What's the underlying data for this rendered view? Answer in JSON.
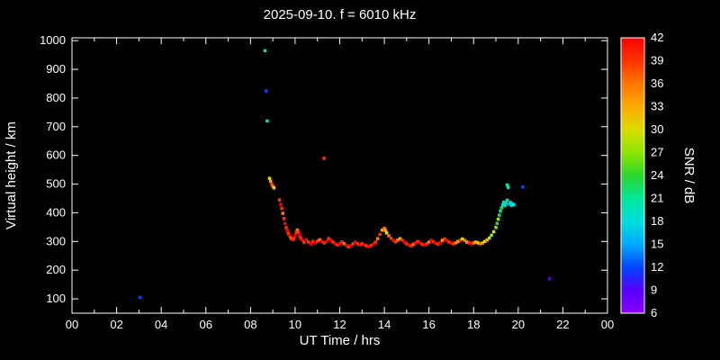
{
  "chart_data": {
    "type": "scatter",
    "title": "2025-09-10. f = 6010 kHz",
    "xlabel": "UT Time / hrs",
    "ylabel": "Virtual height / km",
    "colorbar_label": "SNR / dB",
    "background": "#000000",
    "foreground": "#ffffff",
    "x_range": [
      0,
      24
    ],
    "x_tick_step_hrs": 2,
    "x_ticks": [
      "00",
      "02",
      "04",
      "06",
      "08",
      "10",
      "12",
      "14",
      "16",
      "18",
      "20",
      "22",
      "00"
    ],
    "y_range": [
      50,
      1010
    ],
    "y_ticks": [
      100,
      200,
      300,
      400,
      500,
      600,
      700,
      800,
      900,
      1000
    ],
    "grid": false,
    "legend": "none",
    "colorbar_range": [
      6,
      42
    ],
    "colorbar_ticks": [
      6,
      9,
      12,
      15,
      18,
      21,
      24,
      27,
      30,
      33,
      36,
      39,
      42
    ],
    "colormap": [
      {
        "v": 6,
        "c": "#8800ff"
      },
      {
        "v": 9,
        "c": "#5500ff"
      },
      {
        "v": 12,
        "c": "#0044ff"
      },
      {
        "v": 15,
        "c": "#00aaff"
      },
      {
        "v": 18,
        "c": "#00dddd"
      },
      {
        "v": 21,
        "c": "#00e69a"
      },
      {
        "v": 24,
        "c": "#2cd62c"
      },
      {
        "v": 27,
        "c": "#8ce600"
      },
      {
        "v": 30,
        "c": "#dcdc00"
      },
      {
        "v": 33,
        "c": "#ffaa00"
      },
      {
        "v": 36,
        "c": "#ff7700"
      },
      {
        "v": 39,
        "c": "#ff3300"
      },
      {
        "v": 42,
        "c": "#ff0000"
      }
    ],
    "points_format": [
      "ut_time_hrs",
      "virtual_height_km",
      "snr_db"
    ],
    "points": [
      [
        3.05,
        105,
        12
      ],
      [
        8.65,
        965,
        21
      ],
      [
        8.7,
        825,
        12
      ],
      [
        8.75,
        720,
        19
      ],
      [
        8.85,
        520,
        30
      ],
      [
        8.9,
        510,
        33
      ],
      [
        8.95,
        500,
        39
      ],
      [
        9.0,
        493,
        36
      ],
      [
        9.05,
        487,
        30
      ],
      [
        9.3,
        445,
        39
      ],
      [
        9.35,
        430,
        42
      ],
      [
        9.4,
        415,
        39
      ],
      [
        9.45,
        398,
        36
      ],
      [
        9.5,
        380,
        39
      ],
      [
        9.55,
        362,
        42
      ],
      [
        9.6,
        348,
        39
      ],
      [
        9.65,
        337,
        42
      ],
      [
        9.7,
        327,
        39
      ],
      [
        9.75,
        320,
        42
      ],
      [
        9.8,
        314,
        39
      ],
      [
        9.85,
        309,
        36
      ],
      [
        9.9,
        306,
        42
      ],
      [
        9.95,
        310,
        39
      ],
      [
        10.0,
        320,
        42
      ],
      [
        10.05,
        331,
        39
      ],
      [
        10.1,
        340,
        36
      ],
      [
        10.15,
        332,
        39
      ],
      [
        10.2,
        320,
        42
      ],
      [
        10.25,
        312,
        39
      ],
      [
        10.3,
        306,
        42
      ],
      [
        10.4,
        298,
        39
      ],
      [
        10.5,
        306,
        42
      ],
      [
        10.6,
        298,
        39
      ],
      [
        10.7,
        292,
        42
      ],
      [
        10.8,
        300,
        39
      ],
      [
        10.9,
        295,
        42
      ],
      [
        11.0,
        301,
        39
      ],
      [
        11.1,
        306,
        36
      ],
      [
        11.2,
        300,
        42
      ],
      [
        11.3,
        295,
        39
      ],
      [
        11.3,
        590,
        39
      ],
      [
        11.4,
        300,
        42
      ],
      [
        11.5,
        310,
        39
      ],
      [
        11.6,
        305,
        42
      ],
      [
        11.7,
        298,
        39
      ],
      [
        11.8,
        292,
        42
      ],
      [
        11.9,
        288,
        39
      ],
      [
        12.0,
        292,
        42
      ],
      [
        12.1,
        298,
        39
      ],
      [
        12.2,
        292,
        36
      ],
      [
        12.3,
        286,
        42
      ],
      [
        12.4,
        281,
        39
      ],
      [
        12.5,
        286,
        42
      ],
      [
        12.6,
        292,
        39
      ],
      [
        12.7,
        298,
        42
      ],
      [
        12.8,
        292,
        39
      ],
      [
        12.9,
        288,
        42
      ],
      [
        13.0,
        292,
        39
      ],
      [
        13.1,
        288,
        42
      ],
      [
        13.2,
        285,
        39
      ],
      [
        13.3,
        282,
        42
      ],
      [
        13.4,
        286,
        39
      ],
      [
        13.5,
        291,
        42
      ],
      [
        13.6,
        298,
        39
      ],
      [
        13.7,
        310,
        36
      ],
      [
        13.8,
        325,
        39
      ],
      [
        13.9,
        340,
        33
      ],
      [
        14.0,
        346,
        36
      ],
      [
        14.05,
        338,
        33
      ],
      [
        14.1,
        330,
        30
      ],
      [
        14.2,
        320,
        36
      ],
      [
        14.3,
        311,
        39
      ],
      [
        14.4,
        304,
        42
      ],
      [
        14.5,
        299,
        39
      ],
      [
        14.6,
        305,
        36
      ],
      [
        14.7,
        310,
        33
      ],
      [
        14.8,
        305,
        39
      ],
      [
        14.9,
        298,
        42
      ],
      [
        15.0,
        292,
        39
      ],
      [
        15.1,
        288,
        42
      ],
      [
        15.2,
        285,
        39
      ],
      [
        15.3,
        290,
        36
      ],
      [
        15.4,
        295,
        42
      ],
      [
        15.5,
        300,
        39
      ],
      [
        15.6,
        295,
        42
      ],
      [
        15.7,
        290,
        39
      ],
      [
        15.8,
        288,
        42
      ],
      [
        15.9,
        292,
        39
      ],
      [
        16.0,
        298,
        36
      ],
      [
        16.1,
        304,
        42
      ],
      [
        16.2,
        299,
        39
      ],
      [
        16.3,
        294,
        42
      ],
      [
        16.4,
        291,
        39
      ],
      [
        16.5,
        297,
        42
      ],
      [
        16.6,
        304,
        33
      ],
      [
        16.7,
        309,
        39
      ],
      [
        16.8,
        304,
        42
      ],
      [
        16.9,
        298,
        39
      ],
      [
        17.0,
        295,
        42
      ],
      [
        17.1,
        292,
        39
      ],
      [
        17.2,
        295,
        36
      ],
      [
        17.3,
        300,
        33
      ],
      [
        17.4,
        305,
        39
      ],
      [
        17.5,
        309,
        30
      ],
      [
        17.6,
        304,
        36
      ],
      [
        17.7,
        298,
        33
      ],
      [
        17.8,
        295,
        39
      ],
      [
        17.9,
        292,
        42
      ],
      [
        18.0,
        295,
        36
      ],
      [
        18.1,
        298,
        33
      ],
      [
        18.2,
        295,
        30
      ],
      [
        18.3,
        292,
        36
      ],
      [
        18.4,
        295,
        33
      ],
      [
        18.5,
        300,
        30
      ],
      [
        18.6,
        305,
        33
      ],
      [
        18.7,
        312,
        30
      ],
      [
        18.8,
        322,
        27
      ],
      [
        18.9,
        334,
        30
      ],
      [
        19.0,
        349,
        27
      ],
      [
        19.05,
        363,
        24
      ],
      [
        19.1,
        378,
        27
      ],
      [
        19.15,
        392,
        24
      ],
      [
        19.2,
        406,
        21
      ],
      [
        19.25,
        417,
        24
      ],
      [
        19.3,
        427,
        18
      ],
      [
        19.35,
        437,
        21
      ],
      [
        19.4,
        425,
        18
      ],
      [
        19.45,
        433,
        21
      ],
      [
        19.5,
        444,
        18
      ],
      [
        19.5,
        497,
        21
      ],
      [
        19.55,
        488,
        18
      ],
      [
        19.6,
        430,
        15
      ],
      [
        19.65,
        436,
        18
      ],
      [
        19.7,
        426,
        21
      ],
      [
        19.75,
        431,
        18
      ],
      [
        19.8,
        428,
        18
      ],
      [
        20.2,
        490,
        12
      ],
      [
        21.4,
        170,
        9
      ]
    ]
  }
}
